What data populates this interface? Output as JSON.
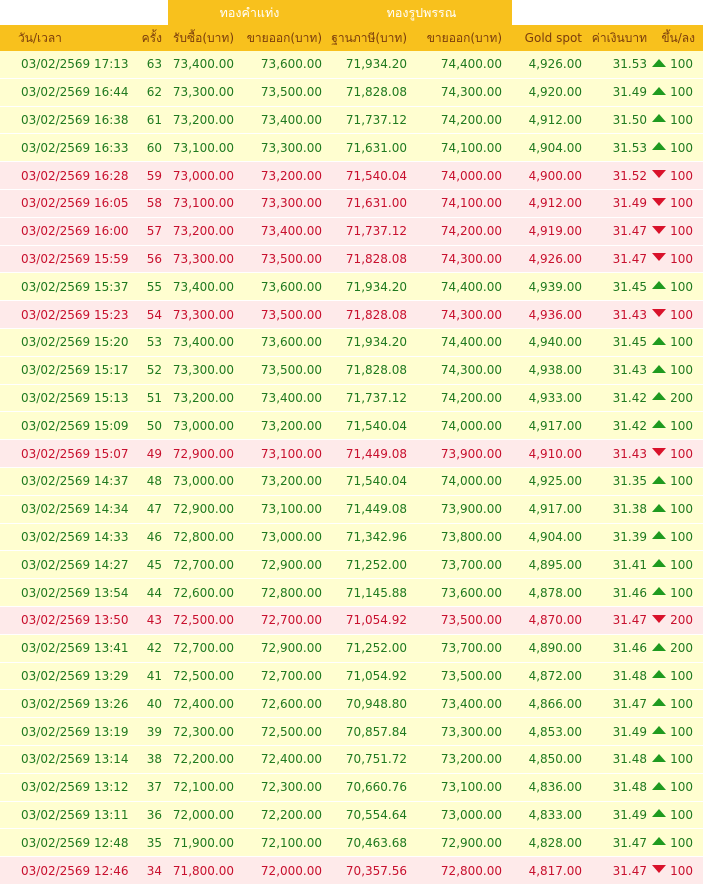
{
  "groups": {
    "bar": "ทองคำแท่ง",
    "ornament": "ทองรูปพรรณ"
  },
  "columns": [
    "วัน/เวลา",
    "ครั้ง",
    "รับซื้อ(บาท)",
    "ขายออก(บาท)",
    "ฐานภาษี(บาท)",
    "ขายออก(บาท)",
    "Gold spot",
    "ค่าเงินบาท",
    "ขึ้น/ลง"
  ],
  "colors": {
    "header_bg": "#f8c11d",
    "up_text": "#1f7a1f",
    "down_text": "#c8102e",
    "up_row_bg": "#fffed0",
    "down_row_bg": "#feeaea"
  },
  "rows": [
    {
      "time": "03/02/2569 17:13",
      "n": "63",
      "bar_buy": "73,400.00",
      "bar_sell": "73,600.00",
      "tax_base": "71,934.20",
      "orn_sell": "74,400.00",
      "spot": "4,926.00",
      "thb": "31.53",
      "dir": "up",
      "change": "100"
    },
    {
      "time": "03/02/2569 16:44",
      "n": "62",
      "bar_buy": "73,300.00",
      "bar_sell": "73,500.00",
      "tax_base": "71,828.08",
      "orn_sell": "74,300.00",
      "spot": "4,920.00",
      "thb": "31.49",
      "dir": "up",
      "change": "100"
    },
    {
      "time": "03/02/2569 16:38",
      "n": "61",
      "bar_buy": "73,200.00",
      "bar_sell": "73,400.00",
      "tax_base": "71,737.12",
      "orn_sell": "74,200.00",
      "spot": "4,912.00",
      "thb": "31.50",
      "dir": "up",
      "change": "100"
    },
    {
      "time": "03/02/2569 16:33",
      "n": "60",
      "bar_buy": "73,100.00",
      "bar_sell": "73,300.00",
      "tax_base": "71,631.00",
      "orn_sell": "74,100.00",
      "spot": "4,904.00",
      "thb": "31.53",
      "dir": "up",
      "change": "100"
    },
    {
      "time": "03/02/2569 16:28",
      "n": "59",
      "bar_buy": "73,000.00",
      "bar_sell": "73,200.00",
      "tax_base": "71,540.04",
      "orn_sell": "74,000.00",
      "spot": "4,900.00",
      "thb": "31.52",
      "dir": "down",
      "change": "100"
    },
    {
      "time": "03/02/2569 16:05",
      "n": "58",
      "bar_buy": "73,100.00",
      "bar_sell": "73,300.00",
      "tax_base": "71,631.00",
      "orn_sell": "74,100.00",
      "spot": "4,912.00",
      "thb": "31.49",
      "dir": "down",
      "change": "100"
    },
    {
      "time": "03/02/2569 16:00",
      "n": "57",
      "bar_buy": "73,200.00",
      "bar_sell": "73,400.00",
      "tax_base": "71,737.12",
      "orn_sell": "74,200.00",
      "spot": "4,919.00",
      "thb": "31.47",
      "dir": "down",
      "change": "100"
    },
    {
      "time": "03/02/2569 15:59",
      "n": "56",
      "bar_buy": "73,300.00",
      "bar_sell": "73,500.00",
      "tax_base": "71,828.08",
      "orn_sell": "74,300.00",
      "spot": "4,926.00",
      "thb": "31.47",
      "dir": "down",
      "change": "100"
    },
    {
      "time": "03/02/2569 15:37",
      "n": "55",
      "bar_buy": "73,400.00",
      "bar_sell": "73,600.00",
      "tax_base": "71,934.20",
      "orn_sell": "74,400.00",
      "spot": "4,939.00",
      "thb": "31.45",
      "dir": "up",
      "change": "100"
    },
    {
      "time": "03/02/2569 15:23",
      "n": "54",
      "bar_buy": "73,300.00",
      "bar_sell": "73,500.00",
      "tax_base": "71,828.08",
      "orn_sell": "74,300.00",
      "spot": "4,936.00",
      "thb": "31.43",
      "dir": "down",
      "change": "100"
    },
    {
      "time": "03/02/2569 15:20",
      "n": "53",
      "bar_buy": "73,400.00",
      "bar_sell": "73,600.00",
      "tax_base": "71,934.20",
      "orn_sell": "74,400.00",
      "spot": "4,940.00",
      "thb": "31.45",
      "dir": "up",
      "change": "100"
    },
    {
      "time": "03/02/2569 15:17",
      "n": "52",
      "bar_buy": "73,300.00",
      "bar_sell": "73,500.00",
      "tax_base": "71,828.08",
      "orn_sell": "74,300.00",
      "spot": "4,938.00",
      "thb": "31.43",
      "dir": "up",
      "change": "100"
    },
    {
      "time": "03/02/2569 15:13",
      "n": "51",
      "bar_buy": "73,200.00",
      "bar_sell": "73,400.00",
      "tax_base": "71,737.12",
      "orn_sell": "74,200.00",
      "spot": "4,933.00",
      "thb": "31.42",
      "dir": "up",
      "change": "200"
    },
    {
      "time": "03/02/2569 15:09",
      "n": "50",
      "bar_buy": "73,000.00",
      "bar_sell": "73,200.00",
      "tax_base": "71,540.04",
      "orn_sell": "74,000.00",
      "spot": "4,917.00",
      "thb": "31.42",
      "dir": "up",
      "change": "100"
    },
    {
      "time": "03/02/2569 15:07",
      "n": "49",
      "bar_buy": "72,900.00",
      "bar_sell": "73,100.00",
      "tax_base": "71,449.08",
      "orn_sell": "73,900.00",
      "spot": "4,910.00",
      "thb": "31.43",
      "dir": "down",
      "change": "100"
    },
    {
      "time": "03/02/2569 14:37",
      "n": "48",
      "bar_buy": "73,000.00",
      "bar_sell": "73,200.00",
      "tax_base": "71,540.04",
      "orn_sell": "74,000.00",
      "spot": "4,925.00",
      "thb": "31.35",
      "dir": "up",
      "change": "100"
    },
    {
      "time": "03/02/2569 14:34",
      "n": "47",
      "bar_buy": "72,900.00",
      "bar_sell": "73,100.00",
      "tax_base": "71,449.08",
      "orn_sell": "73,900.00",
      "spot": "4,917.00",
      "thb": "31.38",
      "dir": "up",
      "change": "100"
    },
    {
      "time": "03/02/2569 14:33",
      "n": "46",
      "bar_buy": "72,800.00",
      "bar_sell": "73,000.00",
      "tax_base": "71,342.96",
      "orn_sell": "73,800.00",
      "spot": "4,904.00",
      "thb": "31.39",
      "dir": "up",
      "change": "100"
    },
    {
      "time": "03/02/2569 14:27",
      "n": "45",
      "bar_buy": "72,700.00",
      "bar_sell": "72,900.00",
      "tax_base": "71,252.00",
      "orn_sell": "73,700.00",
      "spot": "4,895.00",
      "thb": "31.41",
      "dir": "up",
      "change": "100"
    },
    {
      "time": "03/02/2569 13:54",
      "n": "44",
      "bar_buy": "72,600.00",
      "bar_sell": "72,800.00",
      "tax_base": "71,145.88",
      "orn_sell": "73,600.00",
      "spot": "4,878.00",
      "thb": "31.46",
      "dir": "up",
      "change": "100"
    },
    {
      "time": "03/02/2569 13:50",
      "n": "43",
      "bar_buy": "72,500.00",
      "bar_sell": "72,700.00",
      "tax_base": "71,054.92",
      "orn_sell": "73,500.00",
      "spot": "4,870.00",
      "thb": "31.47",
      "dir": "down",
      "change": "200"
    },
    {
      "time": "03/02/2569 13:41",
      "n": "42",
      "bar_buy": "72,700.00",
      "bar_sell": "72,900.00",
      "tax_base": "71,252.00",
      "orn_sell": "73,700.00",
      "spot": "4,890.00",
      "thb": "31.46",
      "dir": "up",
      "change": "200"
    },
    {
      "time": "03/02/2569 13:29",
      "n": "41",
      "bar_buy": "72,500.00",
      "bar_sell": "72,700.00",
      "tax_base": "71,054.92",
      "orn_sell": "73,500.00",
      "spot": "4,872.00",
      "thb": "31.48",
      "dir": "up",
      "change": "100"
    },
    {
      "time": "03/02/2569 13:26",
      "n": "40",
      "bar_buy": "72,400.00",
      "bar_sell": "72,600.00",
      "tax_base": "70,948.80",
      "orn_sell": "73,400.00",
      "spot": "4,866.00",
      "thb": "31.47",
      "dir": "up",
      "change": "100"
    },
    {
      "time": "03/02/2569 13:19",
      "n": "39",
      "bar_buy": "72,300.00",
      "bar_sell": "72,500.00",
      "tax_base": "70,857.84",
      "orn_sell": "73,300.00",
      "spot": "4,853.00",
      "thb": "31.49",
      "dir": "up",
      "change": "100"
    },
    {
      "time": "03/02/2569 13:14",
      "n": "38",
      "bar_buy": "72,200.00",
      "bar_sell": "72,400.00",
      "tax_base": "70,751.72",
      "orn_sell": "73,200.00",
      "spot": "4,850.00",
      "thb": "31.48",
      "dir": "up",
      "change": "100"
    },
    {
      "time": "03/02/2569 13:12",
      "n": "37",
      "bar_buy": "72,100.00",
      "bar_sell": "72,300.00",
      "tax_base": "70,660.76",
      "orn_sell": "73,100.00",
      "spot": "4,836.00",
      "thb": "31.48",
      "dir": "up",
      "change": "100"
    },
    {
      "time": "03/02/2569 13:11",
      "n": "36",
      "bar_buy": "72,000.00",
      "bar_sell": "72,200.00",
      "tax_base": "70,554.64",
      "orn_sell": "73,000.00",
      "spot": "4,833.00",
      "thb": "31.49",
      "dir": "up",
      "change": "100"
    },
    {
      "time": "03/02/2569 12:48",
      "n": "35",
      "bar_buy": "71,900.00",
      "bar_sell": "72,100.00",
      "tax_base": "70,463.68",
      "orn_sell": "72,900.00",
      "spot": "4,828.00",
      "thb": "31.47",
      "dir": "up",
      "change": "100"
    },
    {
      "time": "03/02/2569 12:46",
      "n": "34",
      "bar_buy": "71,800.00",
      "bar_sell": "72,000.00",
      "tax_base": "70,357.56",
      "orn_sell": "72,800.00",
      "spot": "4,817.00",
      "thb": "31.47",
      "dir": "down",
      "change": "100"
    }
  ]
}
